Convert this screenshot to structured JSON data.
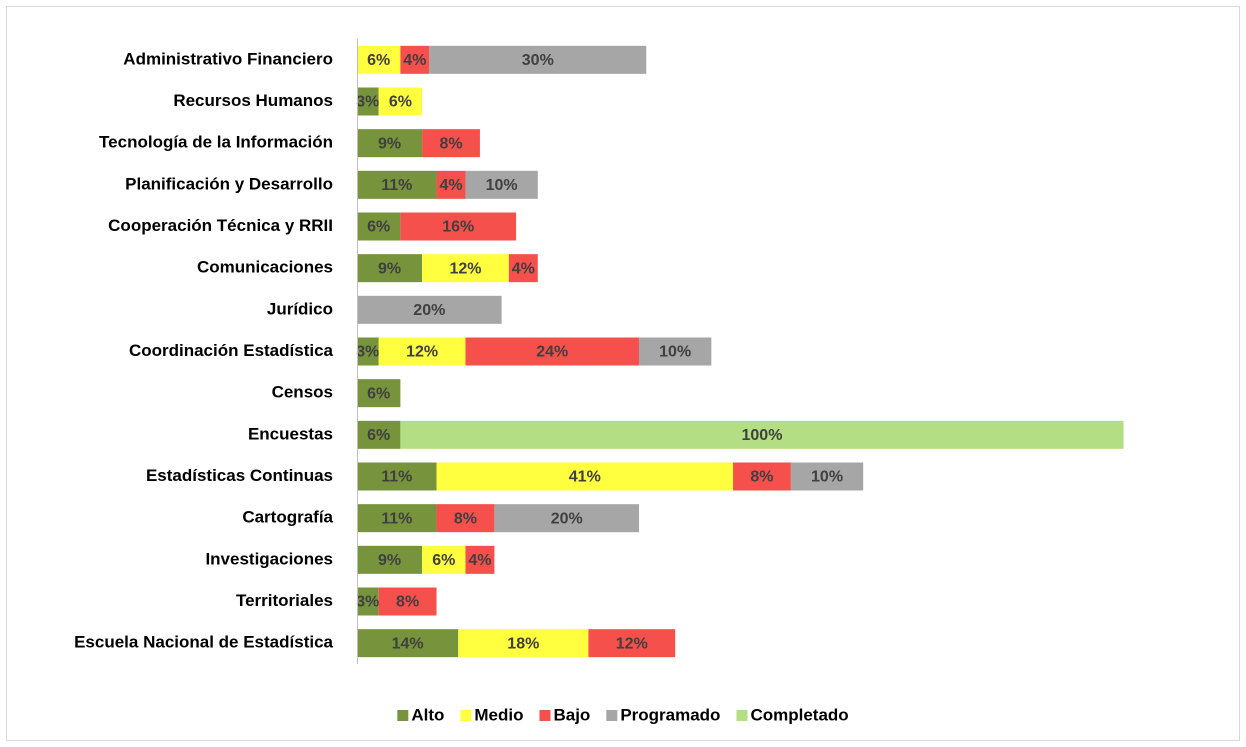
{
  "chart_data": {
    "type": "stacked-bar-horizontal",
    "categories": [
      "Administrativo Financiero",
      "Recursos Humanos",
      "Tecnología de la Información",
      "Planificación y Desarrollo",
      "Cooperación Técnica y RRII",
      "Comunicaciones",
      "Jurídico",
      "Coordinación Estadística",
      "Censos",
      "Encuestas",
      "Estadísticas Continuas",
      "Cartografía",
      "Investigaciones",
      "Territoriales",
      "Escuela Nacional de Estadística"
    ],
    "series": [
      {
        "name": "Alto",
        "color": "#77933c",
        "values": [
          null,
          3,
          9,
          11,
          6,
          9,
          null,
          3,
          6,
          6,
          11,
          11,
          9,
          3,
          14
        ],
        "value_labels": [
          null,
          "3%",
          "9%",
          "11%",
          "6%",
          "9%",
          null,
          "3%",
          "6%",
          "6%",
          "11%",
          "11%",
          "9%",
          "3%",
          "14%"
        ]
      },
      {
        "name": "Medio",
        "color": "#ffff40",
        "values": [
          6,
          6,
          null,
          null,
          null,
          12,
          null,
          12,
          null,
          null,
          41,
          null,
          6,
          null,
          18
        ],
        "value_labels": [
          "6%",
          "6%",
          null,
          null,
          null,
          "12%",
          null,
          "12%",
          null,
          null,
          "41%",
          null,
          "6%",
          null,
          "18%"
        ]
      },
      {
        "name": "Bajo",
        "color": "#f5504c",
        "values": [
          4,
          null,
          8,
          4,
          16,
          4,
          null,
          24,
          null,
          null,
          8,
          8,
          4,
          8,
          12
        ],
        "value_labels": [
          "4%",
          null,
          "8%",
          "4%",
          "16%",
          "4%",
          null,
          "24%",
          null,
          null,
          "8%",
          "8%",
          "4%",
          "8%",
          "12%"
        ]
      },
      {
        "name": "Programado",
        "color": "#a6a6a6",
        "values": [
          30,
          null,
          null,
          10,
          null,
          null,
          20,
          10,
          null,
          null,
          10,
          20,
          null,
          null,
          null
        ],
        "value_labels": [
          "30%",
          null,
          null,
          "10%",
          null,
          null,
          "20%",
          "10%",
          null,
          null,
          "10%",
          "20%",
          null,
          null,
          null
        ]
      },
      {
        "name": "Completado",
        "color": "#b3de84",
        "values": [
          null,
          null,
          null,
          null,
          null,
          null,
          null,
          null,
          null,
          100,
          null,
          null,
          null,
          null,
          null
        ],
        "value_labels": [
          null,
          null,
          null,
          null,
          null,
          null,
          null,
          null,
          null,
          "100%",
          null,
          null,
          null,
          null,
          null
        ]
      }
    ],
    "xlim": [
      0,
      108
    ],
    "legend": "bottom"
  }
}
